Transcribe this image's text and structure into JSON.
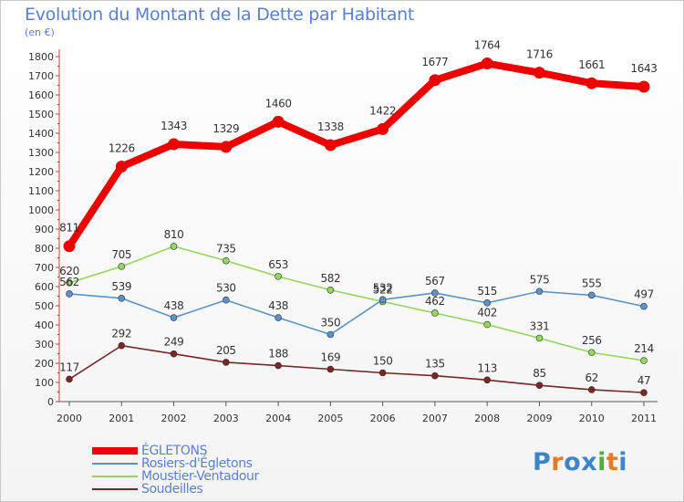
{
  "header": {
    "title": "Evolution du Montant de la Dette par Habitant",
    "subtitle": "(en €)"
  },
  "chart_data": {
    "type": "line",
    "x": [
      "2000",
      "2001",
      "2002",
      "2003",
      "2004",
      "2005",
      "2006",
      "2007",
      "2008",
      "2009",
      "2010",
      "2011"
    ],
    "ylim": [
      0,
      1800
    ],
    "yticks": [
      0,
      100,
      200,
      300,
      400,
      500,
      600,
      700,
      800,
      900,
      1000,
      1100,
      1200,
      1300,
      1400,
      1500,
      1600,
      1700,
      1800
    ],
    "grid": false,
    "legend_position": "bottom-left",
    "series": [
      {
        "name": "ÉGLETONS",
        "color": "#ee0000",
        "values": [
          811,
          1226,
          1343,
          1329,
          1460,
          1338,
          1422,
          1677,
          1764,
          1716,
          1661,
          1643
        ]
      },
      {
        "name": "Rosiers-d'Égletons",
        "color": "#5b93c8",
        "values": [
          562,
          539,
          438,
          530,
          438,
          350,
          532,
          567,
          515,
          575,
          555,
          497
        ]
      },
      {
        "name": "Moustier-Ventadour",
        "color": "#94d65e",
        "values": [
          620,
          705,
          810,
          735,
          653,
          582,
          522,
          462,
          402,
          331,
          256,
          214
        ]
      },
      {
        "name": "Soudeilles",
        "color": "#7b2525",
        "values": [
          117,
          292,
          249,
          205,
          188,
          169,
          150,
          135,
          113,
          85,
          62,
          47
        ]
      }
    ]
  },
  "brand": {
    "letters": [
      "P",
      "r",
      "o",
      "x",
      "i",
      "t",
      "i"
    ],
    "colors": [
      "#3a86c8",
      "#e87b1e",
      "#3a86c8",
      "#3a86c8",
      "#4caf3c",
      "#e87b1e",
      "#3a86c8"
    ]
  }
}
